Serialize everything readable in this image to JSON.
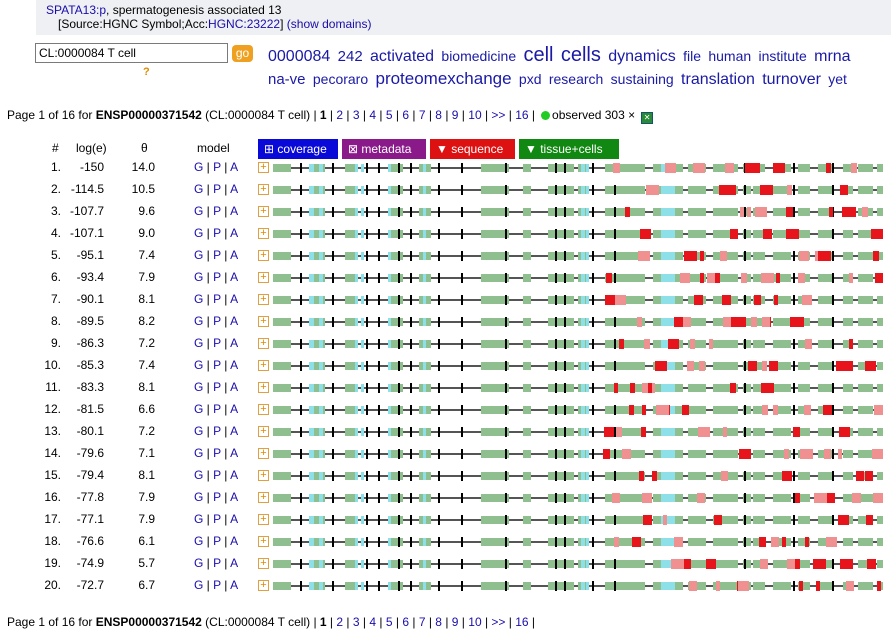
{
  "header": {
    "gene_link": "SPATA13:p",
    "gene_desc": ", spermatogenesis associated 13",
    "source_prefix": "[Source:HGNC Symbol;Acc:",
    "hgnc_link": "HGNC:23222",
    "source_suffix": "]",
    "show_domains": "(show domains)"
  },
  "search": {
    "value": "CL:0000084 T cell",
    "go_label": "go",
    "help": "?"
  },
  "tagcloud": [
    {
      "word": "0000084",
      "size": 16
    },
    {
      "word": "242",
      "size": 15
    },
    {
      "word": "activated",
      "size": 16
    },
    {
      "word": "biomedicine",
      "size": 14
    },
    {
      "word": "cell",
      "size": 20
    },
    {
      "word": "cells",
      "size": 20
    },
    {
      "word": "dynamics",
      "size": 16
    },
    {
      "word": "file",
      "size": 14
    },
    {
      "word": "human",
      "size": 14
    },
    {
      "word": "institute",
      "size": 14
    },
    {
      "word": "mrna",
      "size": 16
    },
    {
      "word": "na-ve",
      "size": 15
    },
    {
      "word": "pecoraro",
      "size": 14
    },
    {
      "word": "proteomexchange",
      "size": 17
    },
    {
      "word": "pxd",
      "size": 14
    },
    {
      "word": "research",
      "size": 14
    },
    {
      "word": "sustaining",
      "size": 14
    },
    {
      "word": "translation",
      "size": 16
    },
    {
      "word": "turnover",
      "size": 16
    },
    {
      "word": "yet",
      "size": 14
    }
  ],
  "pager": {
    "prefix": "Page 1 of 16 for ",
    "protein": "ENSP00000371542",
    "context": " (CL:0000084 T cell) | ",
    "current": "1",
    "pages": [
      "2",
      "3",
      "4",
      "5",
      "6",
      "7",
      "8",
      "9",
      "10",
      ">>",
      "16"
    ],
    "observed_label": "observed 303",
    "close": "×"
  },
  "columns": {
    "num": "#",
    "loge": "log(e)",
    "theta": "θ",
    "model": "model"
  },
  "tabs": [
    {
      "label": "⊞ coverage",
      "color": "#0a0ad8"
    },
    {
      "label": "⊠ metadata",
      "color": "#8a1a8a"
    },
    {
      "label": "▼ sequence",
      "color": "#dd1111"
    },
    {
      "label": "▼ tissue+cells",
      "color": "#118811"
    }
  ],
  "model_links": [
    "G",
    "P",
    "A"
  ],
  "rows": [
    {
      "n": "1.",
      "loge": "-150",
      "theta": "14.0"
    },
    {
      "n": "2.",
      "loge": "-114.5",
      "theta": "10.5"
    },
    {
      "n": "3.",
      "loge": "-107.7",
      "theta": "9.6"
    },
    {
      "n": "4.",
      "loge": "-107.1",
      "theta": "9.0"
    },
    {
      "n": "5.",
      "loge": "-95.1",
      "theta": "7.4"
    },
    {
      "n": "6.",
      "loge": "-93.4",
      "theta": "7.9"
    },
    {
      "n": "7.",
      "loge": "-90.1",
      "theta": "8.1"
    },
    {
      "n": "8.",
      "loge": "-89.5",
      "theta": "8.2"
    },
    {
      "n": "9.",
      "loge": "-86.3",
      "theta": "7.2"
    },
    {
      "n": "10.",
      "loge": "-85.3",
      "theta": "7.4"
    },
    {
      "n": "11.",
      "loge": "-83.3",
      "theta": "8.1"
    },
    {
      "n": "12.",
      "loge": "-81.5",
      "theta": "6.6"
    },
    {
      "n": "13.",
      "loge": "-80.1",
      "theta": "7.2"
    },
    {
      "n": "14.",
      "loge": "-79.6",
      "theta": "7.1"
    },
    {
      "n": "15.",
      "loge": "-79.4",
      "theta": "8.1"
    },
    {
      "n": "16.",
      "loge": "-77.8",
      "theta": "7.9"
    },
    {
      "n": "17.",
      "loge": "-77.1",
      "theta": "7.9"
    },
    {
      "n": "18.",
      "loge": "-76.6",
      "theta": "6.1"
    },
    {
      "n": "19.",
      "loge": "-74.9",
      "theta": "5.7"
    },
    {
      "n": "20.",
      "loge": "-72.7",
      "theta": "6.7"
    }
  ],
  "colors": {
    "coverage_green": "#8fbf8f",
    "cyan": "#8ee0e8",
    "red_strong": "#e8141c",
    "red_light": "#f09090",
    "tick": "#000000"
  }
}
